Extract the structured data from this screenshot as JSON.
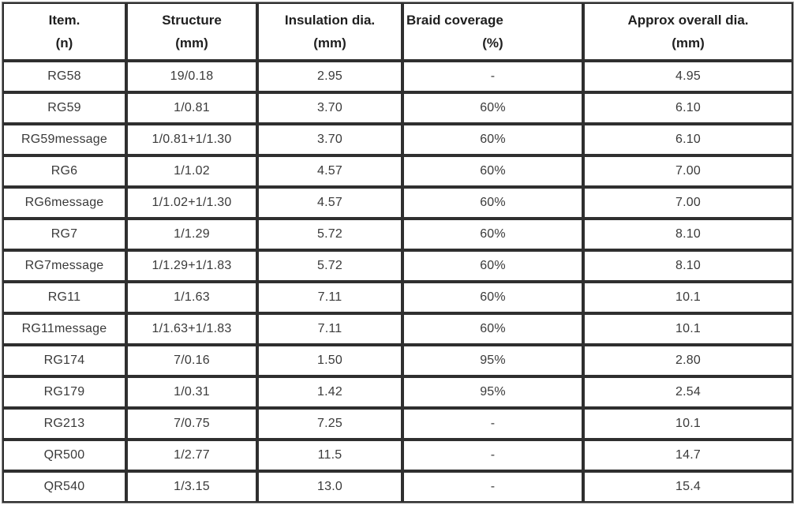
{
  "table": {
    "columns": [
      {
        "id": "item",
        "line1": "Item.",
        "line2": "(n)"
      },
      {
        "id": "structure",
        "line1": "Structure",
        "line2": "(mm)"
      },
      {
        "id": "insulation",
        "line1": "Insulation dia.",
        "line2": "(mm)"
      },
      {
        "id": "braid",
        "line1": "Braid coverage",
        "line2": "(%)"
      },
      {
        "id": "overall",
        "line1": "Approx overall dia.",
        "line2": "(mm)"
      }
    ],
    "rows": [
      [
        "RG58",
        "19/0.18",
        "2.95",
        "-",
        "4.95"
      ],
      [
        "RG59",
        "1/0.81",
        "3.70",
        "60%",
        "6.10"
      ],
      [
        "RG59message",
        "1/0.81+1/1.30",
        "3.70",
        "60%",
        "6.10"
      ],
      [
        "RG6",
        "1/1.02",
        "4.57",
        "60%",
        "7.00"
      ],
      [
        "RG6message",
        "1/1.02+1/1.30",
        "4.57",
        "60%",
        "7.00"
      ],
      [
        "RG7",
        "1/1.29",
        "5.72",
        "60%",
        "8.10"
      ],
      [
        "RG7message",
        "1/1.29+1/1.83",
        "5.72",
        "60%",
        "8.10"
      ],
      [
        "RG11",
        "1/1.63",
        "7.11",
        "60%",
        "10.1"
      ],
      [
        "RG11message",
        "1/1.63+1/1.83",
        "7.11",
        "60%",
        "10.1"
      ],
      [
        "RG174",
        "7/0.16",
        "1.50",
        "95%",
        "2.80"
      ],
      [
        "RG179",
        "1/0.31",
        "1.42",
        "95%",
        "2.54"
      ],
      [
        "RG213",
        "7/0.75",
        "7.25",
        "-",
        "10.1"
      ],
      [
        "QR500",
        "1/2.77",
        "11.5",
        "-",
        "14.7"
      ],
      [
        "QR540",
        "1/3.15",
        "13.0",
        "-",
        "15.4"
      ]
    ],
    "colors": {
      "border_dark": "#2f2f2f",
      "border_halo": "#8a8a8a",
      "header_text": "#1f1f1f",
      "body_text": "#3a3a3a",
      "background": "#ffffff"
    }
  }
}
